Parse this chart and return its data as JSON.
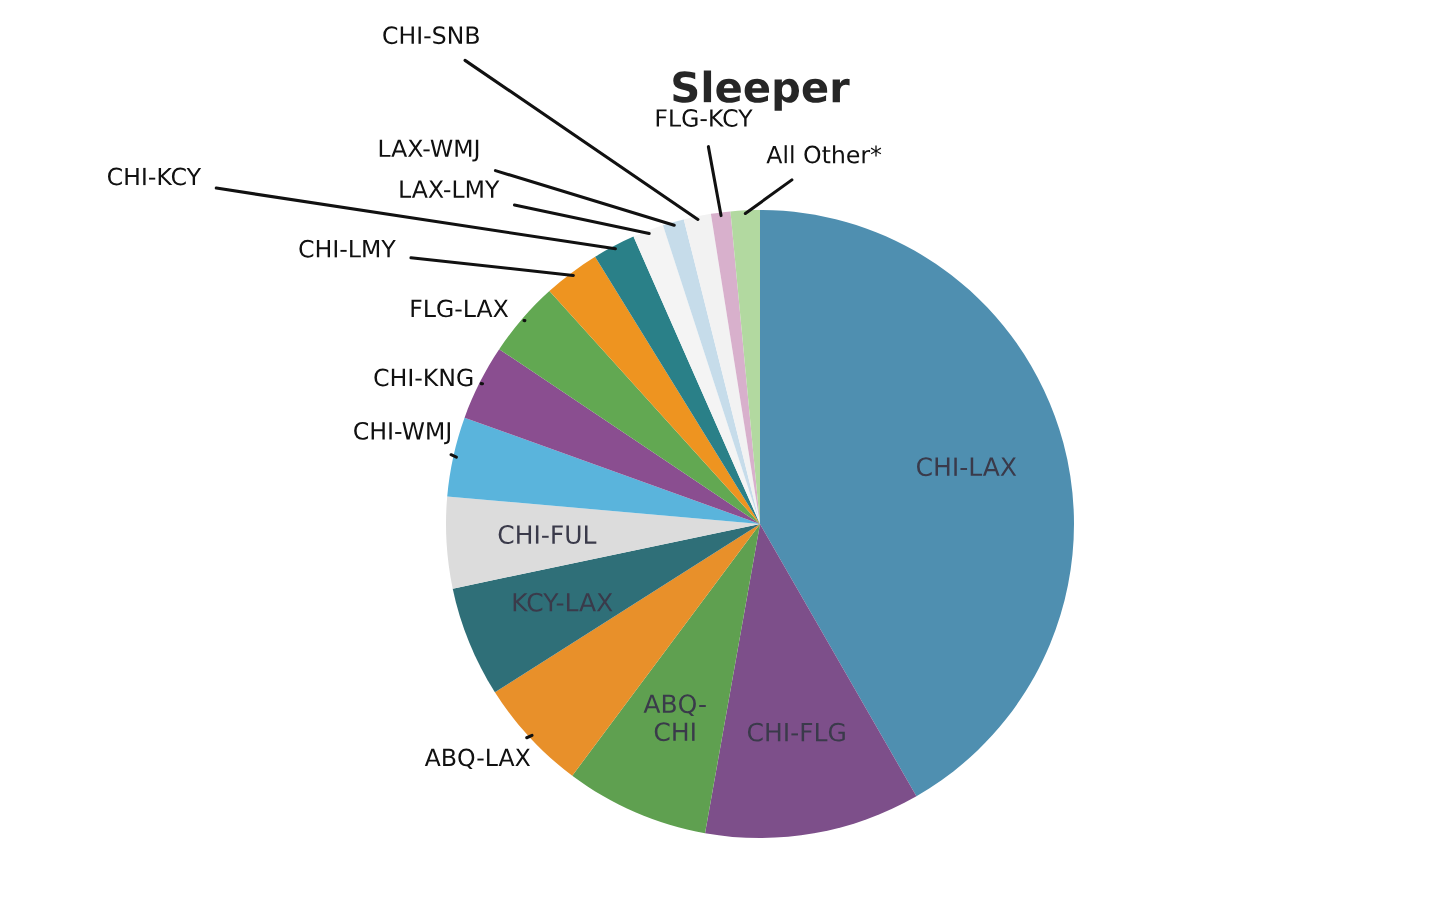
{
  "chart_data": {
    "type": "pie",
    "title": "Sleeper",
    "categories": [
      "CHI-LAX",
      "CHI-FLG",
      "ABQ-\nCHI",
      "ABQ-LAX",
      "KCY-LAX",
      "CHI-FUL",
      "CHI-WMJ",
      "CHI-KNG",
      "FLG-LAX",
      "CHI-LMY",
      "CHI-KCY",
      "LAX-LMY",
      "LAX-WMJ",
      "CHI-SNB",
      "FLG-KCY",
      "All Other*"
    ],
    "values": [
      41.7,
      11.1,
      7.4,
      5.8,
      5.7,
      4.7,
      4.1,
      3.9,
      3.9,
      2.9,
      2.2,
      1.6,
      1.1,
      1.4,
      1.0,
      1.5
    ],
    "colors": [
      "#4f8fb0",
      "#7d4f8a",
      "#5fa050",
      "#e8902a",
      "#2f6f78",
      "#dcdcdc",
      "#5ab4dc",
      "#8a4e90",
      "#62a852",
      "#ee9420",
      "#2a8088",
      "#f4f4f4",
      "#c6dcea",
      "#f2f2f2",
      "#d8b0cc",
      "#b2d9a0"
    ],
    "legend": false
  }
}
